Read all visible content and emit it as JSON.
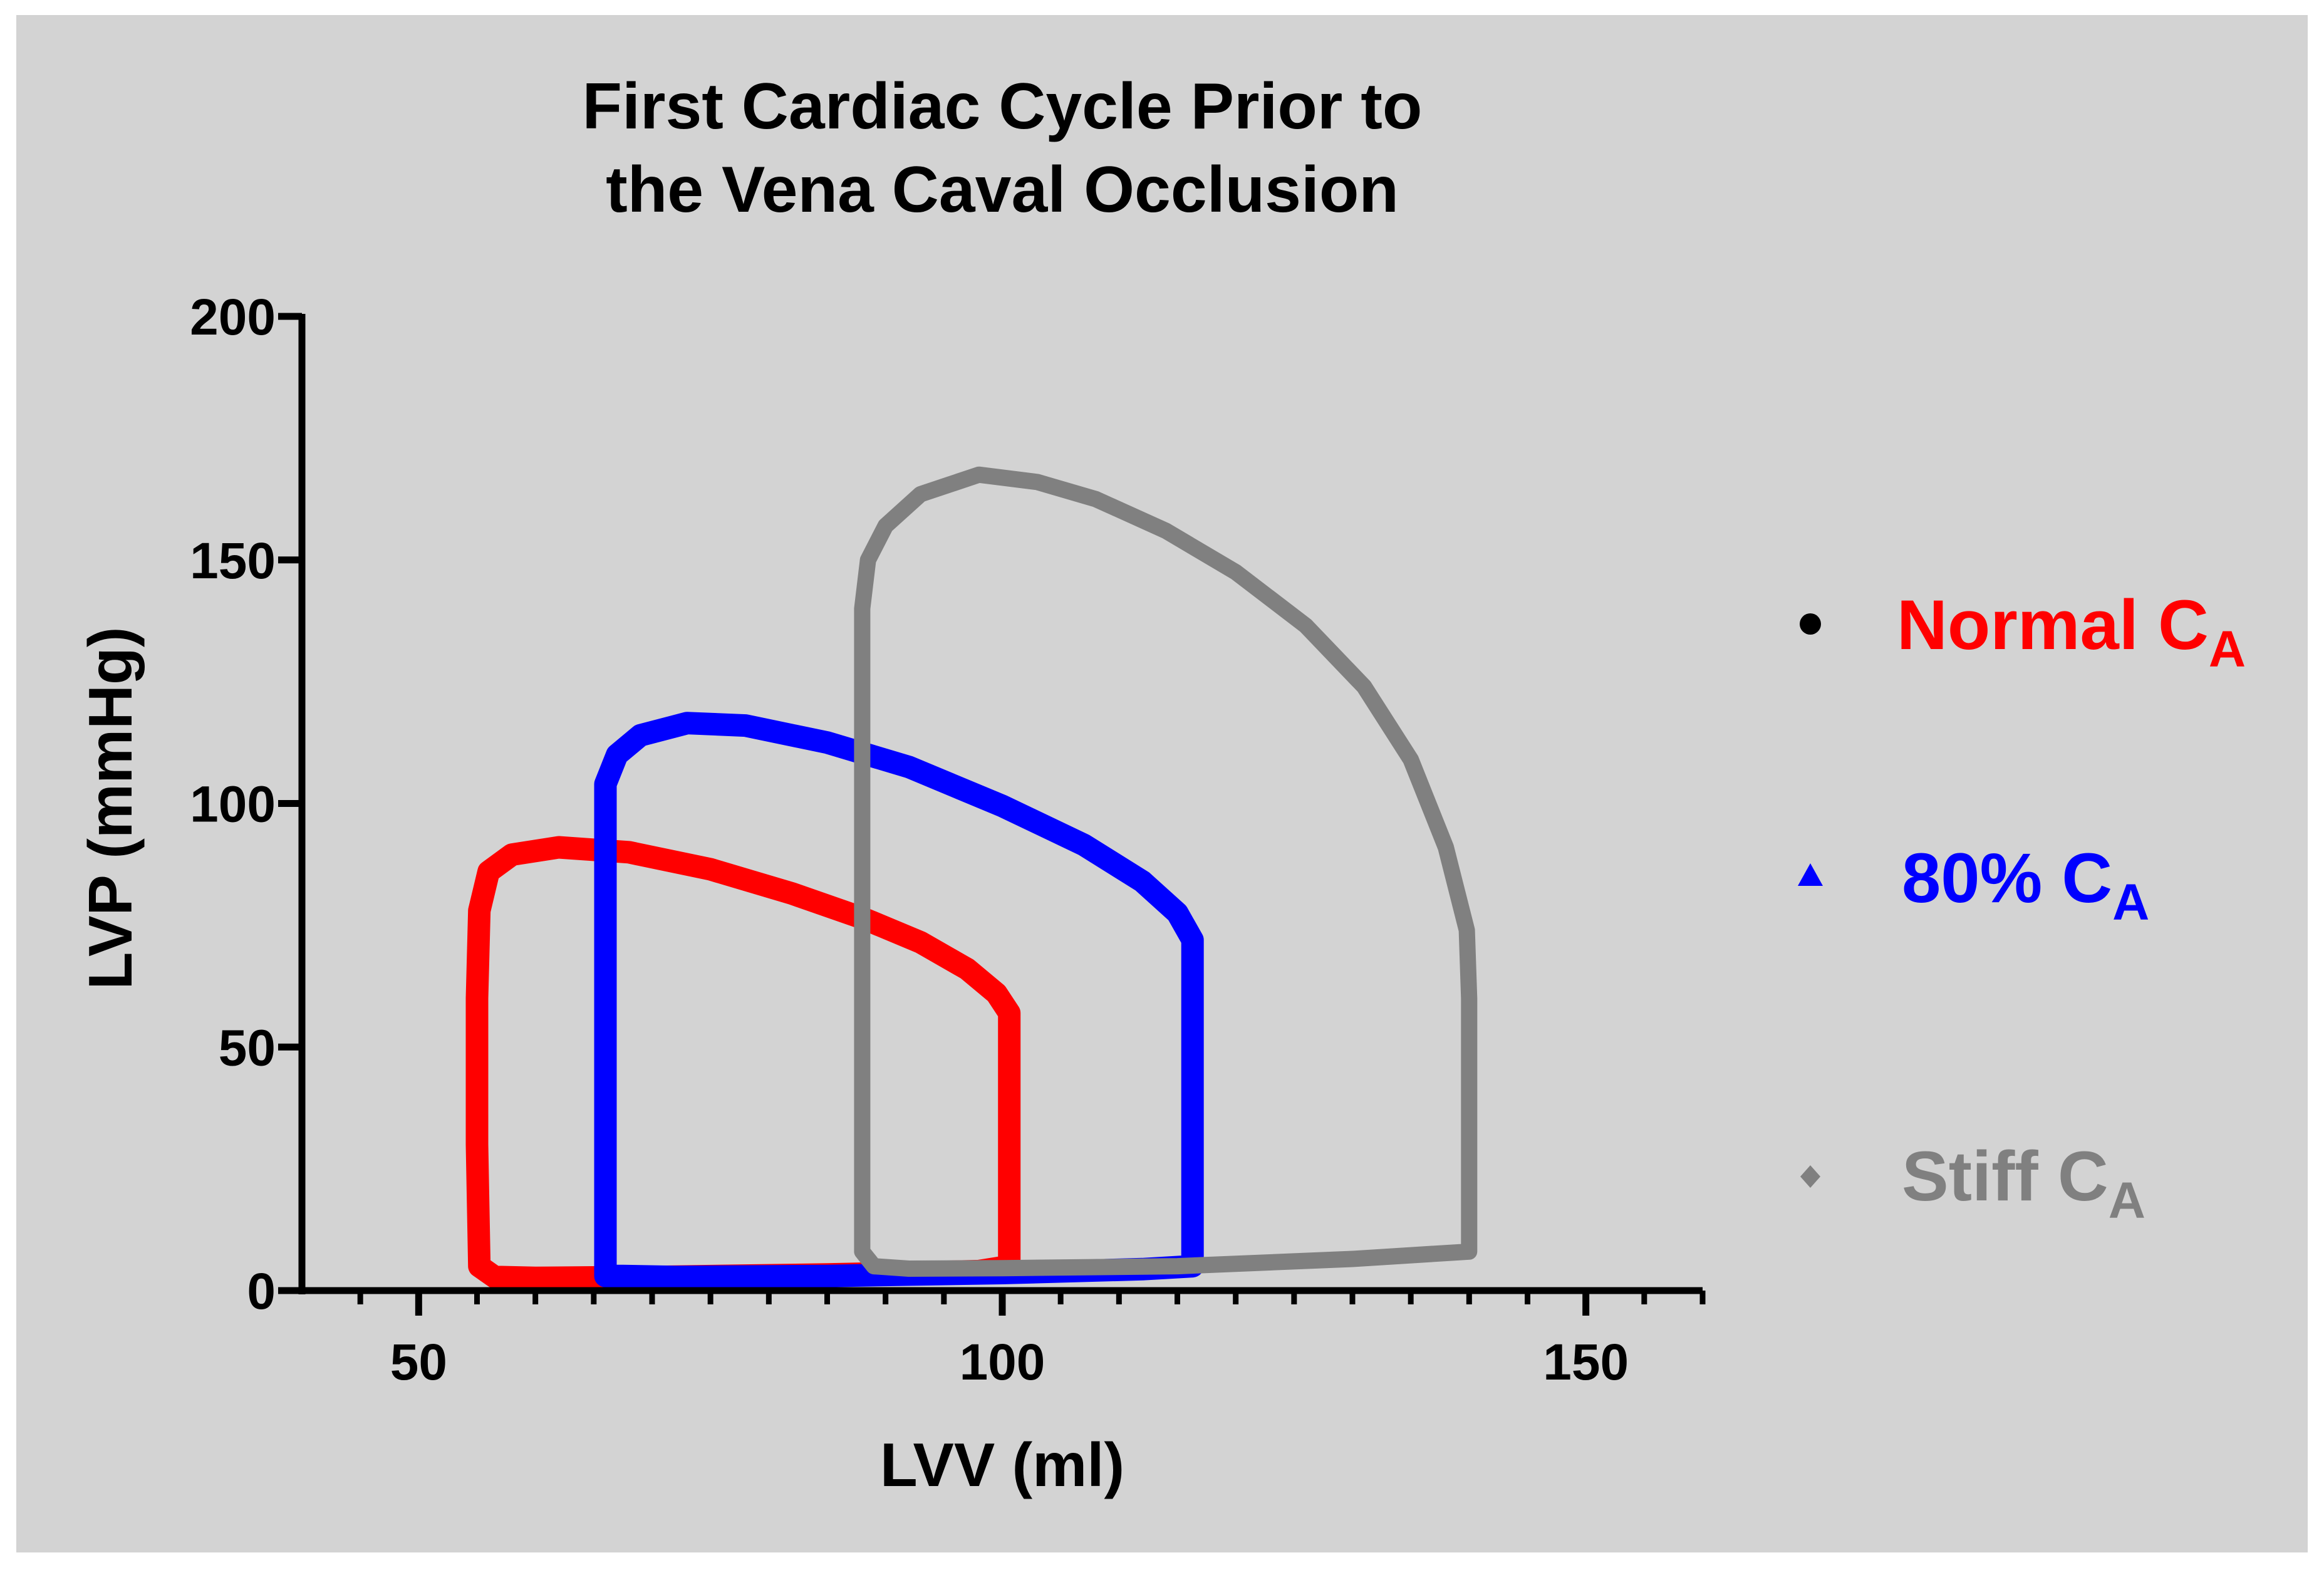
{
  "colors": {
    "background": "#d3d3d3",
    "axis": "#000000",
    "normal": "#ff0000",
    "eighty": "#0000ff",
    "stiff": "#808080",
    "normal_marker": "#000000"
  },
  "chart_data": {
    "type": "line",
    "title_lines": [
      "First Cardiac Cycle Prior to",
      "the Vena Caval Occlusion"
    ],
    "xlabel": "LVV (ml)",
    "ylabel": "LVP (mmHg)",
    "xlim": [
      40,
      160
    ],
    "ylim": [
      0,
      200
    ],
    "x_ticks": [
      50,
      100,
      150
    ],
    "x_tick_labels": [
      "50",
      "100",
      "150"
    ],
    "x_minor_step": 5,
    "y_ticks": [
      0,
      50,
      100,
      150,
      200
    ],
    "y_tick_labels": [
      "0",
      "50",
      "100",
      "150",
      "200"
    ],
    "legend_position": "right",
    "series": [
      {
        "key": "normal",
        "name": "Normal",
        "subscript": "A",
        "base": "C",
        "marker": "circle",
        "points": [
          [
            55.2,
            5
          ],
          [
            55.0,
            30
          ],
          [
            55.0,
            60
          ],
          [
            55.2,
            78
          ],
          [
            56.0,
            86
          ],
          [
            58.0,
            89.5
          ],
          [
            62.0,
            91
          ],
          [
            68.0,
            90
          ],
          [
            75.0,
            86.5
          ],
          [
            82.0,
            81.5
          ],
          [
            88.0,
            76.5
          ],
          [
            93.0,
            71.5
          ],
          [
            97.0,
            66
          ],
          [
            99.5,
            61
          ],
          [
            100.6,
            57
          ],
          [
            100.6,
            40
          ],
          [
            100.6,
            20
          ],
          [
            100.6,
            5
          ],
          [
            98.0,
            4
          ],
          [
            85.0,
            3.3
          ],
          [
            70.0,
            2.8
          ],
          [
            60.0,
            2.6
          ],
          [
            56.5,
            2.8
          ],
          [
            55.2,
            5
          ]
        ]
      },
      {
        "key": "eighty",
        "name": "80%",
        "subscript": "A",
        "base": "C",
        "marker": "triangle",
        "points": [
          [
            66.0,
            3
          ],
          [
            66.0,
            40
          ],
          [
            66.0,
            80
          ],
          [
            66.0,
            104
          ],
          [
            67.0,
            110
          ],
          [
            69.0,
            114
          ],
          [
            73.0,
            116.5
          ],
          [
            78.0,
            116
          ],
          [
            85.0,
            112.5
          ],
          [
            92.0,
            107.5
          ],
          [
            100.0,
            99.5
          ],
          [
            107.0,
            91.5
          ],
          [
            112.0,
            84
          ],
          [
            115.0,
            77.5
          ],
          [
            116.3,
            72
          ],
          [
            116.3,
            50
          ],
          [
            116.3,
            25
          ],
          [
            116.3,
            5
          ],
          [
            112.0,
            4.4
          ],
          [
            100.0,
            3.6
          ],
          [
            85.0,
            3
          ],
          [
            72.0,
            2.8
          ],
          [
            67.5,
            3
          ],
          [
            66.0,
            3
          ]
        ]
      },
      {
        "key": "stiff",
        "name": "Stiff",
        "subscript": "A",
        "base": "C",
        "marker": "diamond",
        "points": [
          [
            88.0,
            8
          ],
          [
            88.0,
            50
          ],
          [
            88.0,
            100
          ],
          [
            88.0,
            140
          ],
          [
            88.5,
            150
          ],
          [
            90.0,
            157
          ],
          [
            93.0,
            163.5
          ],
          [
            98.0,
            167.5
          ],
          [
            103.0,
            166
          ],
          [
            108.0,
            162.5
          ],
          [
            114.0,
            156
          ],
          [
            120.0,
            147.5
          ],
          [
            126.0,
            136.5
          ],
          [
            131.0,
            124
          ],
          [
            135.0,
            109
          ],
          [
            138.0,
            91
          ],
          [
            139.8,
            74
          ],
          [
            140.0,
            60
          ],
          [
            140.0,
            30
          ],
          [
            140.0,
            8
          ],
          [
            130.0,
            6.5
          ],
          [
            115.0,
            5
          ],
          [
            100.0,
            4.6
          ],
          [
            92.0,
            4.5
          ],
          [
            89.0,
            5
          ],
          [
            88.0,
            8
          ]
        ]
      }
    ]
  }
}
